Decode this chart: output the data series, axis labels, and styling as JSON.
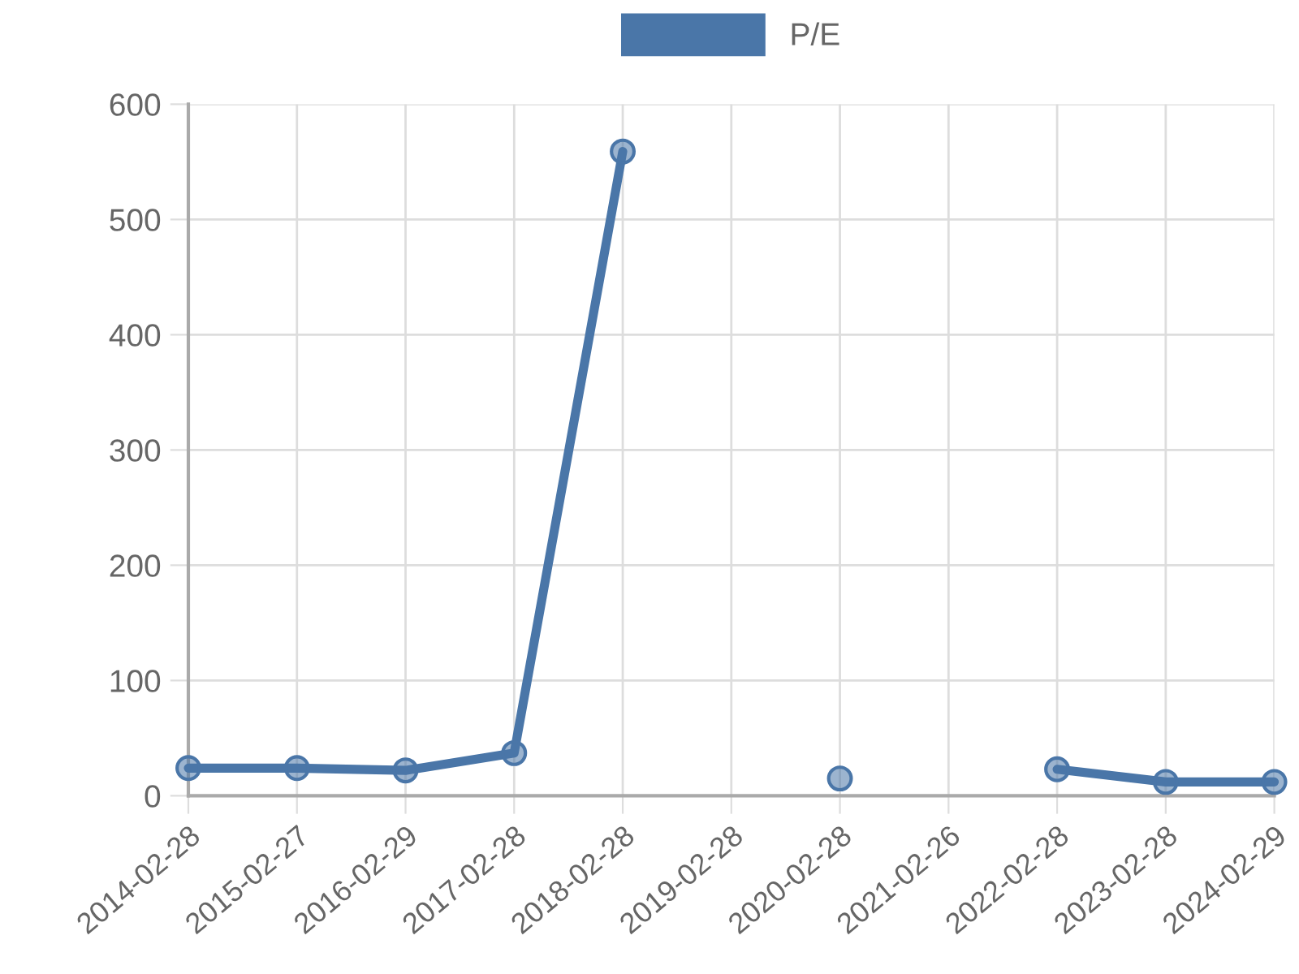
{
  "chart_data": {
    "type": "line",
    "categories": [
      "2014-02-28",
      "2015-02-27",
      "2016-02-29",
      "2017-02-28",
      "2018-02-28",
      "2019-02-28",
      "2020-02-28",
      "2021-02-26",
      "2022-02-28",
      "2023-02-28",
      "2024-02-29"
    ],
    "series": [
      {
        "name": "P/E",
        "color": "#4a76a8",
        "values": [
          24,
          24,
          22,
          37,
          559,
          null,
          15,
          null,
          23,
          12,
          12
        ]
      }
    ],
    "ylim": [
      0,
      600
    ],
    "yticks": [
      0,
      100,
      200,
      300,
      400,
      500,
      600
    ],
    "grid": true,
    "legend": "top",
    "marker": "circle",
    "line_style": "solid"
  }
}
